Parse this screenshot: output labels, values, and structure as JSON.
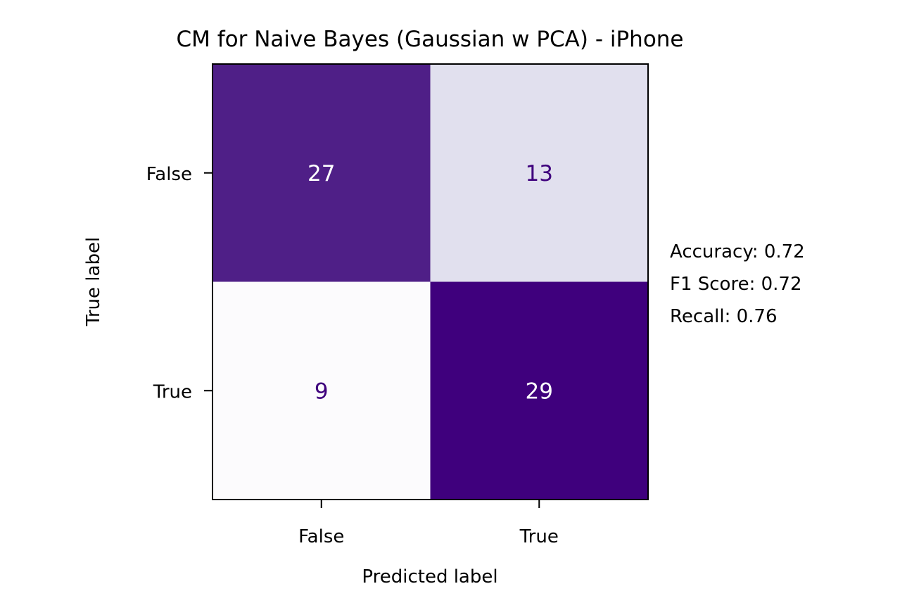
{
  "chart_data": {
    "type": "heatmap",
    "title": "CM for Naive Bayes (Gaussian w PCA) - iPhone",
    "xlabel": "Predicted label",
    "ylabel": "True label",
    "x_categories": [
      "False",
      "True"
    ],
    "y_categories": [
      "False",
      "True"
    ],
    "values": [
      [
        27,
        13
      ],
      [
        9,
        29
      ]
    ],
    "colormap": "Purples",
    "colorbar": false,
    "cell_colors": [
      [
        "#4f1f87",
        "#e1e0ee"
      ],
      [
        "#fcfbfd",
        "#3f007d"
      ]
    ],
    "text_colors": {
      "on_dark": "#ffffff",
      "on_light": "#3f007d"
    },
    "annotations": [
      "Accuracy: 0.72",
      "F1 Score: 0.72",
      "Recall: 0.76"
    ]
  }
}
